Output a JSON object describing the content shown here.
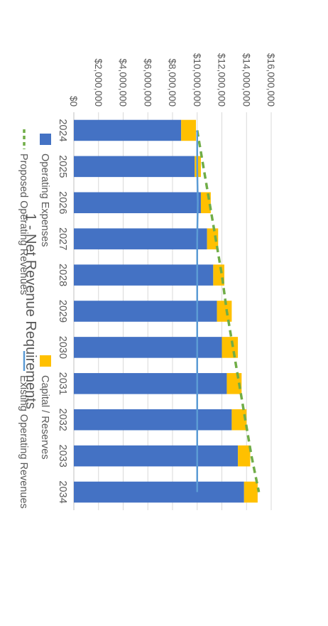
{
  "chart_data": {
    "type": "bar",
    "orientation": "rotated-90-clockwise",
    "title": "1 - Net Revenue Requirements",
    "categories": [
      "2024",
      "2025",
      "2026",
      "2027",
      "2028",
      "2029",
      "2030",
      "2031",
      "2032",
      "2033",
      "2034"
    ],
    "ylim": [
      0,
      16000000
    ],
    "y_ticks": [
      "$0",
      "$2,000,000",
      "$4,000,000",
      "$6,000,000",
      "$8,000,000",
      "$10,000,000",
      "$12,000,000",
      "$14,000,000",
      "$16,000,000"
    ],
    "grid": true,
    "legend_position": "right",
    "series": [
      {
        "name": "Operating Expenses",
        "kind": "bar-stacked",
        "color": "#4472c4",
        "values": [
          8700000,
          9800000,
          10300000,
          10800000,
          11300000,
          11600000,
          12000000,
          12400000,
          12800000,
          13300000,
          13800000
        ]
      },
      {
        "name": "Capital / Reserves",
        "kind": "bar-stacked",
        "color": "#ffc000",
        "values": [
          1200000,
          500000,
          800000,
          900000,
          900000,
          1200000,
          1300000,
          1200000,
          1200000,
          1000000,
          1100000
        ]
      },
      {
        "name": "Proposed Operating Revenues",
        "kind": "line-dashed",
        "color": "#70ad47",
        "values": [
          10000000,
          10500000,
          11000000,
          11500000,
          12000000,
          12400000,
          12900000,
          13400000,
          13900000,
          14400000,
          15000000
        ]
      },
      {
        "name": "Existing Operating Revenues",
        "kind": "line",
        "color": "#5b9bd5",
        "values": [
          10000000,
          10000000,
          10050000,
          10000000,
          10000000,
          10000000,
          10000000,
          10000000,
          10000000,
          10000000,
          10000000
        ]
      }
    ]
  }
}
